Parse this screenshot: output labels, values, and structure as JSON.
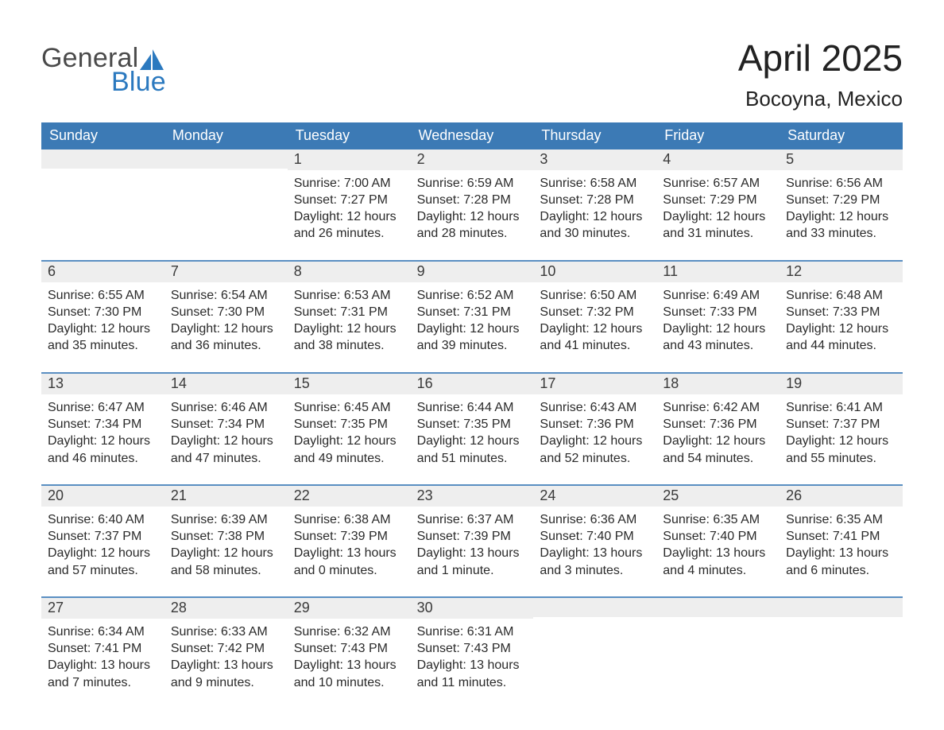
{
  "logo": {
    "word1": "General",
    "word2": "Blue"
  },
  "title": {
    "month": "April 2025",
    "location": "Bocoyna, Mexico"
  },
  "colors": {
    "header_blue": "#3c7ab5",
    "accent_blue": "#2b79bf",
    "band_gray": "#eeeeee",
    "rule_blue": "#5a8fc2",
    "background": "#ffffff",
    "text": "#2a2a2a"
  },
  "typography": {
    "title_fontsize": 46,
    "subtitle_fontsize": 26,
    "dow_fontsize": 18,
    "daynum_fontsize": 18,
    "body_fontsize": 16
  },
  "daysOfWeek": [
    "Sunday",
    "Monday",
    "Tuesday",
    "Wednesday",
    "Thursday",
    "Friday",
    "Saturday"
  ],
  "weeks": [
    [
      {
        "empty": true
      },
      {
        "empty": true
      },
      {
        "n": "1",
        "sunrise": "Sunrise: 7:00 AM",
        "sunset": "Sunset: 7:27 PM",
        "day1": "Daylight: 12 hours",
        "day2": "and 26 minutes."
      },
      {
        "n": "2",
        "sunrise": "Sunrise: 6:59 AM",
        "sunset": "Sunset: 7:28 PM",
        "day1": "Daylight: 12 hours",
        "day2": "and 28 minutes."
      },
      {
        "n": "3",
        "sunrise": "Sunrise: 6:58 AM",
        "sunset": "Sunset: 7:28 PM",
        "day1": "Daylight: 12 hours",
        "day2": "and 30 minutes."
      },
      {
        "n": "4",
        "sunrise": "Sunrise: 6:57 AM",
        "sunset": "Sunset: 7:29 PM",
        "day1": "Daylight: 12 hours",
        "day2": "and 31 minutes."
      },
      {
        "n": "5",
        "sunrise": "Sunrise: 6:56 AM",
        "sunset": "Sunset: 7:29 PM",
        "day1": "Daylight: 12 hours",
        "day2": "and 33 minutes."
      }
    ],
    [
      {
        "n": "6",
        "sunrise": "Sunrise: 6:55 AM",
        "sunset": "Sunset: 7:30 PM",
        "day1": "Daylight: 12 hours",
        "day2": "and 35 minutes."
      },
      {
        "n": "7",
        "sunrise": "Sunrise: 6:54 AM",
        "sunset": "Sunset: 7:30 PM",
        "day1": "Daylight: 12 hours",
        "day2": "and 36 minutes."
      },
      {
        "n": "8",
        "sunrise": "Sunrise: 6:53 AM",
        "sunset": "Sunset: 7:31 PM",
        "day1": "Daylight: 12 hours",
        "day2": "and 38 minutes."
      },
      {
        "n": "9",
        "sunrise": "Sunrise: 6:52 AM",
        "sunset": "Sunset: 7:31 PM",
        "day1": "Daylight: 12 hours",
        "day2": "and 39 minutes."
      },
      {
        "n": "10",
        "sunrise": "Sunrise: 6:50 AM",
        "sunset": "Sunset: 7:32 PM",
        "day1": "Daylight: 12 hours",
        "day2": "and 41 minutes."
      },
      {
        "n": "11",
        "sunrise": "Sunrise: 6:49 AM",
        "sunset": "Sunset: 7:33 PM",
        "day1": "Daylight: 12 hours",
        "day2": "and 43 minutes."
      },
      {
        "n": "12",
        "sunrise": "Sunrise: 6:48 AM",
        "sunset": "Sunset: 7:33 PM",
        "day1": "Daylight: 12 hours",
        "day2": "and 44 minutes."
      }
    ],
    [
      {
        "n": "13",
        "sunrise": "Sunrise: 6:47 AM",
        "sunset": "Sunset: 7:34 PM",
        "day1": "Daylight: 12 hours",
        "day2": "and 46 minutes."
      },
      {
        "n": "14",
        "sunrise": "Sunrise: 6:46 AM",
        "sunset": "Sunset: 7:34 PM",
        "day1": "Daylight: 12 hours",
        "day2": "and 47 minutes."
      },
      {
        "n": "15",
        "sunrise": "Sunrise: 6:45 AM",
        "sunset": "Sunset: 7:35 PM",
        "day1": "Daylight: 12 hours",
        "day2": "and 49 minutes."
      },
      {
        "n": "16",
        "sunrise": "Sunrise: 6:44 AM",
        "sunset": "Sunset: 7:35 PM",
        "day1": "Daylight: 12 hours",
        "day2": "and 51 minutes."
      },
      {
        "n": "17",
        "sunrise": "Sunrise: 6:43 AM",
        "sunset": "Sunset: 7:36 PM",
        "day1": "Daylight: 12 hours",
        "day2": "and 52 minutes."
      },
      {
        "n": "18",
        "sunrise": "Sunrise: 6:42 AM",
        "sunset": "Sunset: 7:36 PM",
        "day1": "Daylight: 12 hours",
        "day2": "and 54 minutes."
      },
      {
        "n": "19",
        "sunrise": "Sunrise: 6:41 AM",
        "sunset": "Sunset: 7:37 PM",
        "day1": "Daylight: 12 hours",
        "day2": "and 55 minutes."
      }
    ],
    [
      {
        "n": "20",
        "sunrise": "Sunrise: 6:40 AM",
        "sunset": "Sunset: 7:37 PM",
        "day1": "Daylight: 12 hours",
        "day2": "and 57 minutes."
      },
      {
        "n": "21",
        "sunrise": "Sunrise: 6:39 AM",
        "sunset": "Sunset: 7:38 PM",
        "day1": "Daylight: 12 hours",
        "day2": "and 58 minutes."
      },
      {
        "n": "22",
        "sunrise": "Sunrise: 6:38 AM",
        "sunset": "Sunset: 7:39 PM",
        "day1": "Daylight: 13 hours",
        "day2": "and 0 minutes."
      },
      {
        "n": "23",
        "sunrise": "Sunrise: 6:37 AM",
        "sunset": "Sunset: 7:39 PM",
        "day1": "Daylight: 13 hours",
        "day2": "and 1 minute."
      },
      {
        "n": "24",
        "sunrise": "Sunrise: 6:36 AM",
        "sunset": "Sunset: 7:40 PM",
        "day1": "Daylight: 13 hours",
        "day2": "and 3 minutes."
      },
      {
        "n": "25",
        "sunrise": "Sunrise: 6:35 AM",
        "sunset": "Sunset: 7:40 PM",
        "day1": "Daylight: 13 hours",
        "day2": "and 4 minutes."
      },
      {
        "n": "26",
        "sunrise": "Sunrise: 6:35 AM",
        "sunset": "Sunset: 7:41 PM",
        "day1": "Daylight: 13 hours",
        "day2": "and 6 minutes."
      }
    ],
    [
      {
        "n": "27",
        "sunrise": "Sunrise: 6:34 AM",
        "sunset": "Sunset: 7:41 PM",
        "day1": "Daylight: 13 hours",
        "day2": "and 7 minutes."
      },
      {
        "n": "28",
        "sunrise": "Sunrise: 6:33 AM",
        "sunset": "Sunset: 7:42 PM",
        "day1": "Daylight: 13 hours",
        "day2": "and 9 minutes."
      },
      {
        "n": "29",
        "sunrise": "Sunrise: 6:32 AM",
        "sunset": "Sunset: 7:43 PM",
        "day1": "Daylight: 13 hours",
        "day2": "and 10 minutes."
      },
      {
        "n": "30",
        "sunrise": "Sunrise: 6:31 AM",
        "sunset": "Sunset: 7:43 PM",
        "day1": "Daylight: 13 hours",
        "day2": "and 11 minutes."
      },
      {
        "empty": true
      },
      {
        "empty": true
      },
      {
        "empty": true
      }
    ]
  ]
}
